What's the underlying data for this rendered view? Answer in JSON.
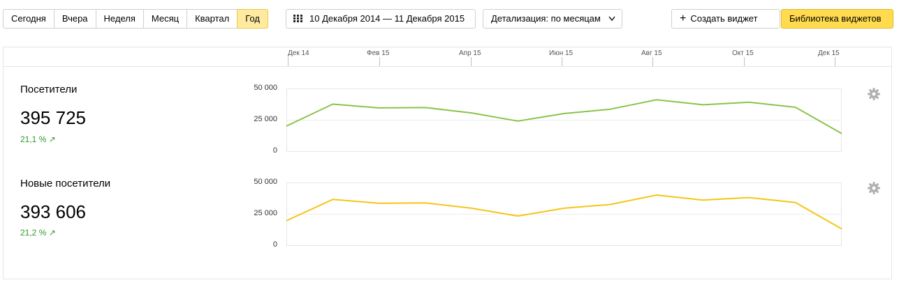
{
  "toolbar": {
    "periods": [
      "Сегодня",
      "Вчера",
      "Неделя",
      "Месяц",
      "Квартал",
      "Год"
    ],
    "active_period": "Год",
    "date_range": "10 Декабря 2014 — 11 Декабря 2015",
    "detail": "Детализация: по месяцам",
    "create_widget": "Создать виджет",
    "widget_library": "Библиотека виджетов"
  },
  "timeline": {
    "labels": [
      "Дек 14",
      "Фев 15",
      "Апр 15",
      "Июн 15",
      "Авг 15",
      "Окт 15",
      "Дек 15"
    ]
  },
  "metrics": [
    {
      "name": "Посетители",
      "value": "395 725",
      "change": "21,1 % ↗"
    },
    {
      "name": "Новые посетители",
      "value": "393 606",
      "change": "21,2 % ↗"
    }
  ],
  "chart_data": [
    {
      "type": "line",
      "title": "Посетители",
      "ytick_labels": [
        "50 000",
        "25 000",
        "0"
      ],
      "ylim": [
        0,
        50000
      ],
      "grid": true,
      "color": "#8bc34a",
      "series": [
        {
          "values": [
            20000,
            37500,
            34500,
            34800,
            30500,
            24000,
            30000,
            33500,
            41000,
            37000,
            39000,
            35000,
            14000
          ]
        }
      ]
    },
    {
      "type": "line",
      "title": "Новые посетители",
      "ytick_labels": [
        "50 000",
        "25 000",
        "0"
      ],
      "ylim": [
        0,
        50000
      ],
      "grid": true,
      "color": "#f5c518",
      "series": [
        {
          "values": [
            19500,
            36500,
            33500,
            33800,
            29500,
            23300,
            29500,
            32500,
            40000,
            36000,
            38000,
            34000,
            13000
          ]
        }
      ]
    }
  ]
}
